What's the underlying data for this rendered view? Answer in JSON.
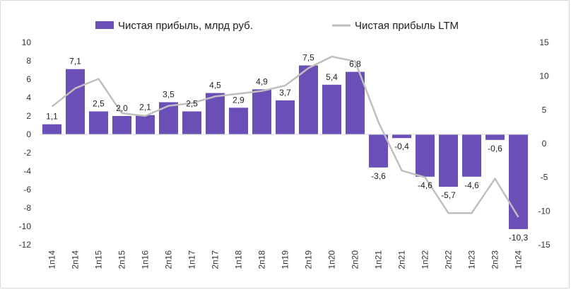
{
  "chart_data": {
    "type": "bar",
    "categories": [
      "1п14",
      "2п14",
      "1п15",
      "2п15",
      "1п16",
      "2п16",
      "1п17",
      "2п17",
      "1п18",
      "2п18",
      "1п19",
      "2п19",
      "1п20",
      "2п20",
      "1п21",
      "2п21",
      "1п22",
      "2п22",
      "1п23",
      "2п23",
      "1п24"
    ],
    "series": [
      {
        "name": "Чистая прибыль, млрд руб.",
        "type": "bar",
        "axis": "left",
        "color": "#6a50b6",
        "values": [
          1.1,
          7.1,
          2.5,
          2.0,
          2.1,
          3.5,
          2.5,
          4.5,
          2.9,
          4.9,
          3.7,
          7.5,
          5.4,
          6.8,
          -3.6,
          -0.4,
          -4.6,
          -5.7,
          -4.6,
          -0.6,
          -10.3
        ],
        "labels": [
          "1,1",
          "7,1",
          "2,5",
          "2,0",
          "2,1",
          "3,5",
          "2,5",
          "4,5",
          "2,9",
          "4,9",
          "3,7",
          "7,5",
          "5,4",
          "6,8",
          "-3,6",
          "-0,4",
          "-4,6",
          "-5,7",
          "-4,6",
          "-0,6",
          "-10,3"
        ]
      },
      {
        "name": "Чистая прибыль LTM",
        "type": "line",
        "axis": "right",
        "color": "#bfbfbf",
        "values": [
          5.5,
          8.2,
          9.6,
          4.5,
          4.1,
          5.6,
          6.0,
          7.0,
          7.4,
          7.8,
          8.6,
          11.2,
          12.9,
          12.2,
          3.2,
          -4.0,
          -5.0,
          -10.3,
          -10.3,
          -5.2,
          -10.9
        ]
      }
    ],
    "y_left": {
      "min": -12,
      "max": 10,
      "ticks": [
        "10",
        "8",
        "6",
        "4",
        "2",
        "0",
        "-2",
        "-4",
        "-6",
        "-8",
        "-10",
        "-12"
      ],
      "tick_values": [
        10,
        8,
        6,
        4,
        2,
        0,
        -2,
        -4,
        -6,
        -8,
        -10,
        -12
      ]
    },
    "y_right": {
      "min": -15,
      "max": 15,
      "ticks": [
        "15",
        "10",
        "5",
        "0",
        "-5",
        "-10",
        "-15"
      ],
      "tick_values": [
        15,
        10,
        5,
        0,
        -5,
        -10,
        -15
      ]
    },
    "legend_position": "top-center",
    "grid": false
  }
}
